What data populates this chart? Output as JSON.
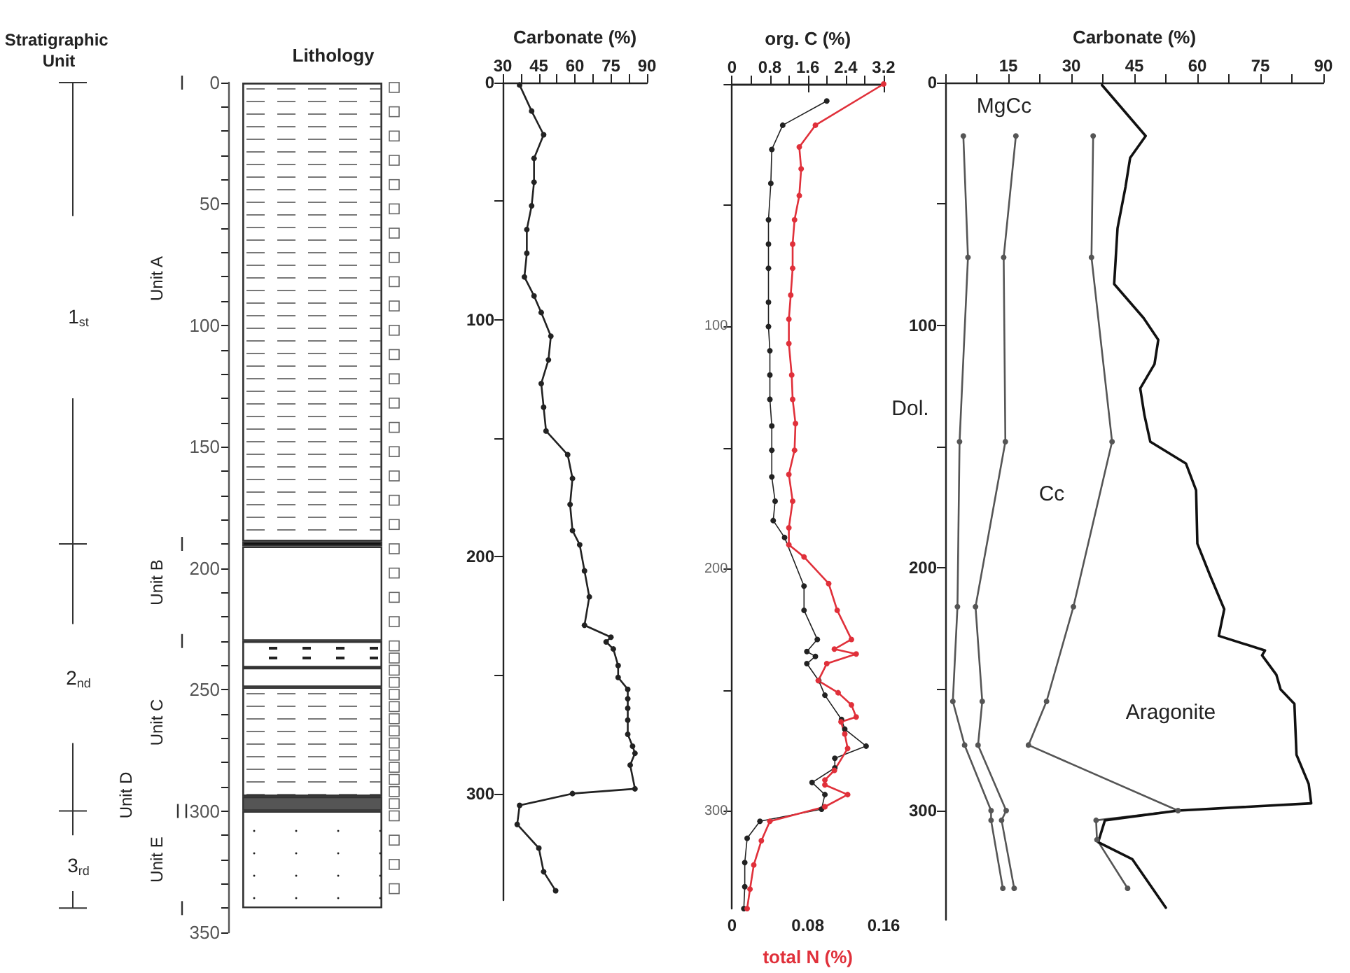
{
  "chart_data": [
    {
      "type": "bar",
      "stacked": true,
      "title": "Lithology",
      "categories": [
        null
      ],
      "ylim": [
        350,
        0
      ],
      "tick_labels": "y",
      "yticks": [
        0,
        {
          "value": 10,
          "label": null
        },
        {
          "value": 20,
          "label": null
        },
        {
          "value": 30,
          "label": null
        },
        {
          "value": 40,
          "label": null
        },
        50,
        {
          "value": 60,
          "label": null
        },
        {
          "value": 70,
          "label": null
        },
        {
          "value": 80,
          "label": null
        },
        {
          "value": 90,
          "label": null
        },
        100,
        {
          "value": 110,
          "label": null
        },
        {
          "value": 120,
          "label": null
        },
        {
          "value": 130,
          "label": null
        },
        {
          "value": 140,
          "label": null
        },
        150,
        {
          "value": 160,
          "label": null
        },
        {
          "value": 170,
          "label": null
        },
        {
          "value": 180,
          "label": null
        },
        {
          "value": 190,
          "label": null
        },
        200,
        {
          "value": 210,
          "label": null
        },
        {
          "value": 220,
          "label": null
        },
        {
          "value": 230,
          "label": null
        },
        {
          "value": 240,
          "label": null
        },
        250,
        {
          "value": 260,
          "label": null
        },
        {
          "value": 270,
          "label": null
        },
        {
          "value": 280,
          "label": null
        },
        {
          "value": 290,
          "label": null
        },
        300,
        {
          "value": 310,
          "label": null
        },
        {
          "value": 320,
          "label": null
        },
        {
          "value": 330,
          "label": null
        },
        {
          "value": 340,
          "label": null
        },
        350
      ],
      "series": [
        {
          "color": "#ffffff",
          "values": [
            189
          ]
        },
        {
          "color": "#111111",
          "values": [
            2
          ]
        },
        {
          "color": "#ffffff",
          "values": [
            39
          ]
        },
        {
          "color": "#ffffff",
          "values": [
            11
          ]
        },
        {
          "color": "#ffffff",
          "values": [
            8
          ]
        },
        {
          "color": "#ffffff",
          "values": [
            45
          ]
        },
        {
          "color": "#555555",
          "values": [
            6
          ]
        },
        {
          "color": "#ffffff",
          "values": [
            40
          ]
        }
      ],
      "annotations": [
        "Stratigraphic Unit",
        "1$_{st}$",
        "2$_{nd}$",
        "3$_{rd}$",
        "Unit A",
        "Unit B",
        "Unit C",
        "Unit D",
        "Unit E"
      ]
    },
    {
      "type": "line",
      "xlabel": "Carbonate (%)",
      "xlim": [
        30,
        90
      ],
      "ylim": [
        345,
        0
      ],
      "marker": "circle",
      "line_style": "solid",
      "xticks": [
        30,
        {
          "value": 37.5,
          "label": null
        },
        45,
        {
          "value": 52.5,
          "label": null
        },
        60,
        {
          "value": 67.5,
          "label": null
        },
        75,
        {
          "value": 82.5,
          "label": null
        },
        90
      ],
      "yticks": [
        0,
        {
          "value": 50,
          "label": null
        },
        100,
        {
          "value": 150,
          "label": null
        },
        200,
        {
          "value": 250,
          "label": null
        },
        300
      ],
      "series": [
        {
          "color": "#222222",
          "x": [
            37,
            42,
            47,
            43,
            43,
            42,
            40,
            40,
            39,
            43,
            46,
            50,
            49,
            46,
            47,
            48,
            57,
            59,
            58,
            59,
            62,
            64,
            66,
            64,
            75,
            73,
            76,
            78,
            78,
            82,
            82,
            82,
            82,
            82,
            84,
            85,
            83,
            85,
            59,
            37,
            36,
            45,
            47,
            52
          ],
          "values": [
            1,
            12,
            22,
            32,
            42,
            52,
            62,
            72,
            82,
            90,
            97,
            107,
            117,
            127,
            137,
            147,
            157,
            167,
            178,
            189,
            195,
            206,
            217,
            229,
            234,
            236,
            239,
            246,
            251,
            256,
            260,
            264,
            269,
            275,
            280,
            283,
            288,
            298,
            300,
            305,
            313,
            323,
            333,
            341
          ]
        }
      ]
    },
    {
      "type": "line",
      "xlabel": "total N (%)",
      "x2label": "org. C (%)",
      "ylim": [
        340,
        0
      ],
      "marker": "circle",
      "line_style": "solid",
      "xlim": [
        0,
        0.16
      ],
      "xticks": [
        0,
        0.08,
        0.16
      ],
      "x2lim": [
        0,
        3.2
      ],
      "x2ticks": [
        0,
        {
          "value": 0.4,
          "label": null
        },
        0.8,
        {
          "value": 1.2,
          "label": null
        },
        1.6,
        {
          "value": 2,
          "label": null
        },
        2.4,
        {
          "value": 2.8,
          "label": null
        },
        3.2
      ],
      "yticks": [
        {
          "value": 0,
          "label": null
        },
        {
          "value": 50,
          "label": null
        },
        100,
        {
          "value": 150,
          "label": null
        },
        200,
        {
          "value": 250,
          "label": null
        },
        300
      ],
      "series": [
        {
          "color": "#222222",
          "axis": "x2",
          "x": [
            2.0,
            1.07,
            0.84,
            0.82,
            0.77,
            0.77,
            0.77,
            0.77,
            0.77,
            0.8,
            0.8,
            0.8,
            0.84,
            0.84,
            0.84,
            0.91,
            0.87,
            1.11,
            1.52,
            1.52,
            1.8,
            1.58,
            1.76,
            1.58,
            1.83,
            1.96,
            2.31,
            2.38,
            2.83,
            2.17,
            2.17,
            1.69,
            1.96,
            1.89,
            0.59,
            0.32,
            0.27,
            0.27,
            0.25
          ],
          "values": [
            7,
            17,
            27,
            41,
            56,
            66,
            76,
            90,
            100,
            110,
            120,
            130,
            141,
            151,
            162,
            172,
            180,
            187,
            207,
            217,
            229,
            234,
            236,
            239,
            246,
            252,
            262,
            266,
            273,
            278,
            282,
            288,
            293,
            299,
            304,
            311,
            321,
            331,
            340
          ]
        },
        {
          "color": "#e0303a",
          "x": [
            0.16,
            0.088,
            0.071,
            0.073,
            0.071,
            0.066,
            0.064,
            0.064,
            0.062,
            0.06,
            0.06,
            0.063,
            0.064,
            0.067,
            0.066,
            0.06,
            0.064,
            0.06,
            0.06,
            0.076,
            0.102,
            0.111,
            0.126,
            0.108,
            0.131,
            0.1,
            0.091,
            0.112,
            0.126,
            0.131,
            0.115,
            0.119,
            0.122,
            0.108,
            0.098,
            0.098,
            0.122,
            0.098,
            0.04,
            0.031,
            0.023,
            0.019,
            0.016
          ],
          "values": [
            0,
            17,
            26,
            35,
            46,
            56,
            66,
            76,
            87,
            97,
            107,
            120,
            130,
            140,
            151,
            161,
            172,
            183,
            190,
            195,
            206,
            217,
            229,
            233,
            235,
            239,
            246,
            251,
            256,
            261,
            263,
            268,
            274,
            283,
            287,
            289,
            293,
            298,
            304,
            312,
            322,
            332,
            340
          ]
        }
      ]
    },
    {
      "type": "line",
      "xlabel": "Carbonate (%)",
      "xlim": [
        0,
        90
      ],
      "ylim": [
        345,
        0
      ],
      "line_style": "solid",
      "xticks": [
        {
          "value": 0,
          "label": null
        },
        {
          "value": 7.5,
          "label": null
        },
        15,
        {
          "value": 22.5,
          "label": null
        },
        30,
        {
          "value": 37.5,
          "label": null
        },
        45,
        {
          "value": 52.5,
          "label": null
        },
        60,
        {
          "value": 67.5,
          "label": null
        },
        75,
        {
          "value": 82.5,
          "label": null
        },
        90
      ],
      "yticks": [
        0,
        {
          "value": 50,
          "label": null
        },
        100,
        {
          "value": 150,
          "label": null
        },
        200,
        {
          "value": 250,
          "label": null
        },
        300
      ],
      "annotations": [
        "MgCc",
        "Dol.",
        "Cc",
        "Aragonite"
      ],
      "series": [
        {
          "color": "#555555",
          "marker": "circle",
          "x": [
            4.3,
            5.4,
            3.4,
            2.9,
            1.8,
            4.6,
            10.9,
            10.9,
            13.7
          ],
          "values": [
            22,
            72,
            148,
            216,
            255,
            273,
            300,
            304,
            332
          ]
        },
        {
          "color": "#555555",
          "marker": "circle",
          "x": [
            16.8,
            13.9,
            14.3,
            7.2,
            8.8,
            7.8,
            14.5,
            13.4,
            16.4
          ],
          "values": [
            22,
            72,
            148,
            216,
            255,
            273,
            300,
            304,
            332
          ]
        },
        {
          "color": "#555555",
          "marker": "circle",
          "x": [
            35.2,
            34.8,
            39.7,
            30.5,
            24.1,
            19.8,
            55.4,
            35.9,
            36.1,
            43.4
          ],
          "values": [
            22,
            72,
            148,
            216,
            255,
            273,
            300,
            304,
            312,
            332
          ]
        },
        {
          "color": "#111111",
          "marker": "none",
          "x": [
            37.3,
            47.7,
            44,
            42.9,
            41,
            40.2,
            47.2,
            50.7,
            49.8,
            46.4,
            47.4,
            48.8,
            57.3,
            59.7,
            60,
            63,
            66.4,
            65.1,
            76.1,
            75.4,
            78.8,
            79.8,
            83.1,
            83.6,
            86.5,
            87.1,
            55.4,
            38,
            36.4,
            44.5,
            52.5
          ],
          "values": [
            1,
            22,
            31,
            43,
            60,
            83,
            97,
            106,
            116,
            126,
            137,
            148,
            157,
            168,
            190,
            203,
            217,
            228,
            234,
            236,
            244,
            250,
            256,
            277,
            289,
            297,
            300,
            304,
            313,
            320,
            340
          ]
        }
      ]
    }
  ]
}
